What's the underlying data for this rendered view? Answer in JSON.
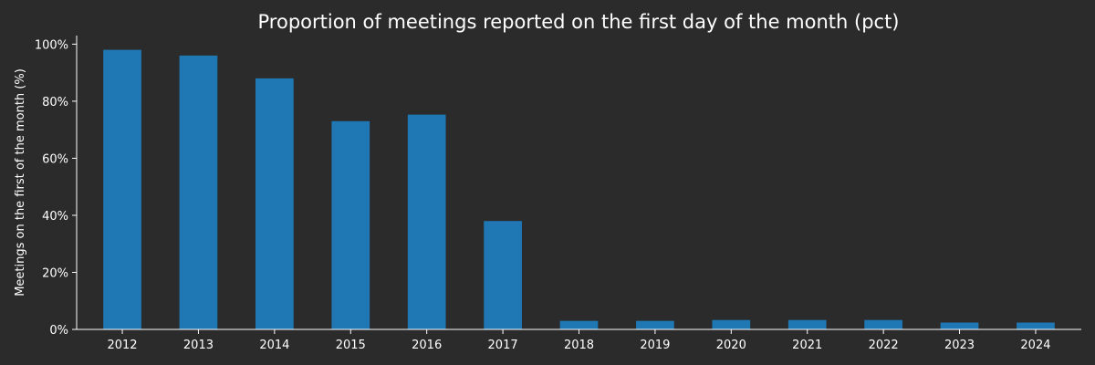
{
  "chart_data": {
    "type": "bar",
    "title": "Proportion of meetings reported on the first day of the month (pct)",
    "ylabel": "Meetings on the first of the month (%)",
    "xlabel": "",
    "categories": [
      "2012",
      "2013",
      "2014",
      "2015",
      "2016",
      "2017",
      "2018",
      "2019",
      "2020",
      "2021",
      "2022",
      "2023",
      "2024"
    ],
    "values": [
      98,
      96,
      88,
      73,
      75.3,
      38,
      3,
      3,
      3.3,
      3.3,
      3.3,
      2.4,
      2.4
    ],
    "ylim": [
      0,
      103
    ],
    "yticks": [
      0,
      20,
      40,
      60,
      80,
      100
    ],
    "ytick_labels": [
      "0%",
      "20%",
      "40%",
      "60%",
      "80%",
      "100%"
    ],
    "grid": false,
    "colors": {
      "bar": "#1f77b4",
      "background": "#2b2b2b",
      "text": "#ffffff",
      "axis": "#ffffff"
    }
  }
}
